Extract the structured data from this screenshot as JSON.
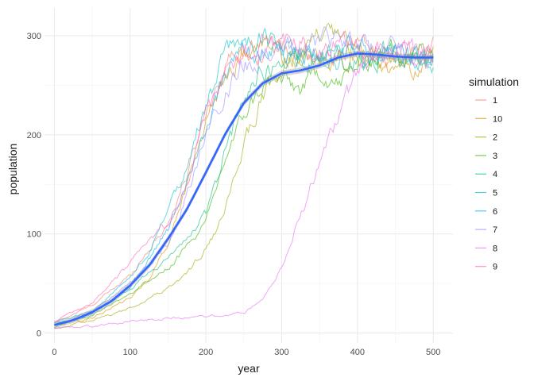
{
  "chart_data": {
    "type": "line",
    "title": "",
    "xlabel": "year",
    "ylabel": "population",
    "xlim": [
      -13,
      526
    ],
    "ylim": [
      -10,
      328
    ],
    "x_ticks": [
      0,
      100,
      200,
      300,
      400,
      500
    ],
    "y_ticks": [
      0,
      100,
      200,
      300
    ],
    "grid": true,
    "legend": {
      "title": "simulation",
      "placement": "right",
      "entries": [
        "1",
        "10",
        "2",
        "3",
        "4",
        "5",
        "6",
        "7",
        "8",
        "9"
      ]
    },
    "colors": {
      "1": "#F8766D",
      "10": "#D89000",
      "2": "#A3A500",
      "3": "#39B600",
      "4": "#00BF7D",
      "5": "#00BFC4",
      "6": "#00B0F6",
      "7": "#9590FF",
      "8": "#E76BF3",
      "9": "#FF62BC",
      "smooth": "#3366FF"
    },
    "series": [
      {
        "name": "1",
        "x": [
          0,
          50,
          100,
          125,
          150,
          175,
          200,
          225,
          250,
          275,
          300,
          350,
          400,
          450,
          500
        ],
        "y": [
          10,
          28,
          58,
          85,
          110,
          160,
          225,
          270,
          290,
          285,
          290,
          275,
          290,
          280,
          285
        ]
      },
      {
        "name": "10",
        "x": [
          0,
          50,
          100,
          125,
          150,
          175,
          200,
          225,
          250,
          275,
          300,
          350,
          400,
          450,
          500
        ],
        "y": [
          8,
          15,
          35,
          55,
          90,
          150,
          215,
          260,
          280,
          290,
          280,
          275,
          280,
          260,
          275
        ]
      },
      {
        "name": "2",
        "x": [
          0,
          50,
          100,
          150,
          175,
          200,
          225,
          250,
          275,
          300,
          325,
          350,
          400,
          450,
          500
        ],
        "y": [
          5,
          12,
          25,
          45,
          60,
          85,
          120,
          190,
          240,
          265,
          280,
          300,
          285,
          275,
          280
        ]
      },
      {
        "name": "3",
        "x": [
          0,
          50,
          100,
          150,
          200,
          225,
          250,
          275,
          300,
          325,
          350,
          375,
          400,
          450,
          500
        ],
        "y": [
          8,
          18,
          40,
          65,
          110,
          175,
          220,
          250,
          255,
          245,
          265,
          250,
          270,
          290,
          280
        ]
      },
      {
        "name": "4",
        "x": [
          0,
          50,
          100,
          150,
          175,
          200,
          225,
          250,
          275,
          300,
          350,
          400,
          450,
          500
        ],
        "y": [
          6,
          20,
          45,
          75,
          95,
          120,
          180,
          240,
          265,
          275,
          285,
          270,
          285,
          275
        ]
      },
      {
        "name": "5",
        "x": [
          0,
          50,
          100,
          125,
          150,
          175,
          200,
          225,
          250,
          275,
          300,
          350,
          400,
          450,
          500
        ],
        "y": [
          10,
          22,
          55,
          80,
          125,
          170,
          230,
          280,
          295,
          300,
          285,
          275,
          280,
          285,
          265
        ]
      },
      {
        "name": "6",
        "x": [
          0,
          50,
          100,
          125,
          150,
          175,
          200,
          225,
          250,
          275,
          300,
          350,
          400,
          450,
          500
        ],
        "y": [
          8,
          20,
          45,
          75,
          105,
          155,
          210,
          260,
          280,
          285,
          285,
          280,
          285,
          280,
          275
        ]
      },
      {
        "name": "7",
        "x": [
          0,
          50,
          100,
          150,
          175,
          200,
          225,
          250,
          275,
          300,
          350,
          400,
          450,
          500
        ],
        "y": [
          9,
          22,
          50,
          90,
          140,
          200,
          245,
          270,
          280,
          285,
          295,
          290,
          285,
          270
        ]
      },
      {
        "name": "8",
        "x": [
          0,
          50,
          100,
          150,
          200,
          250,
          275,
          300,
          325,
          350,
          375,
          400,
          425,
          450,
          500
        ],
        "y": [
          5,
          7,
          12,
          15,
          16,
          20,
          35,
          65,
          120,
          170,
          215,
          265,
          290,
          285,
          280
        ]
      },
      {
        "name": "9",
        "x": [
          0,
          50,
          100,
          125,
          150,
          175,
          200,
          225,
          250,
          275,
          300,
          350,
          400,
          450,
          500
        ],
        "y": [
          12,
          30,
          70,
          95,
          110,
          150,
          215,
          265,
          285,
          295,
          300,
          285,
          290,
          280,
          285
        ]
      }
    ],
    "smooth": {
      "name": "smooth",
      "x": [
        0,
        25,
        50,
        75,
        100,
        125,
        150,
        175,
        200,
        225,
        250,
        275,
        300,
        325,
        350,
        375,
        400,
        425,
        450,
        475,
        500
      ],
      "y": [
        8,
        13,
        21,
        32,
        48,
        68,
        95,
        125,
        162,
        200,
        232,
        252,
        262,
        265,
        270,
        278,
        282,
        281,
        279,
        278,
        278
      ]
    }
  }
}
